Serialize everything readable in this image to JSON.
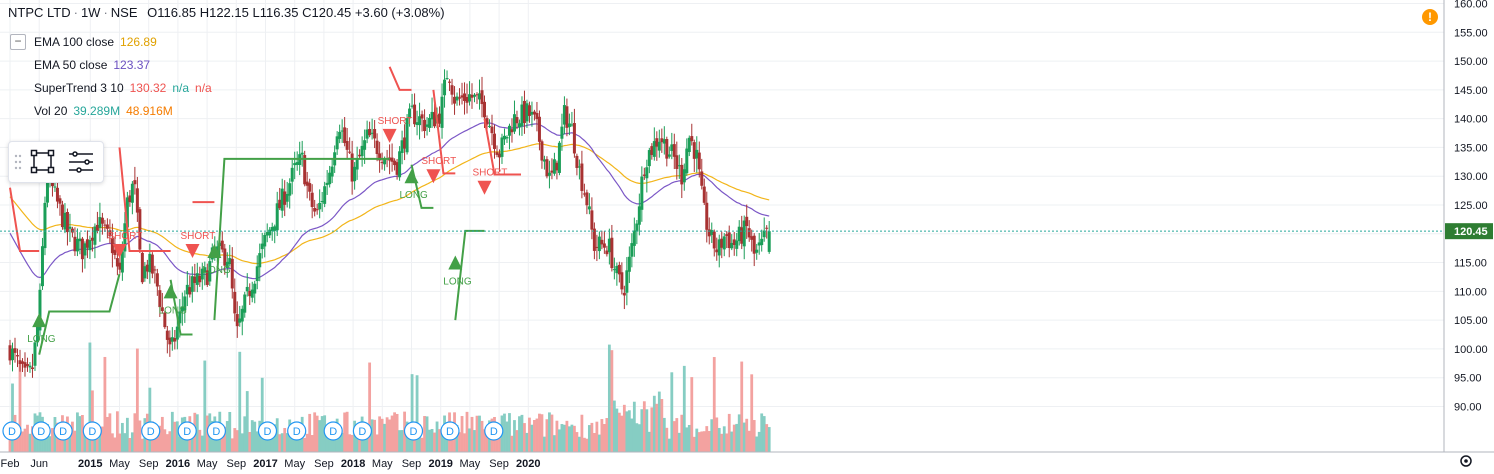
{
  "header": {
    "symbol": "NTPC LTD",
    "interval": "1W",
    "exchange": "NSE",
    "open": "O116.85",
    "high": "H122.15",
    "low": "L116.35",
    "close": "C120.45",
    "change": "+3.60 (+3.08%)"
  },
  "legend": {
    "collapse_icon": "minus-icon",
    "items": [
      {
        "label": "EMA 100 close",
        "values": [
          "126.89"
        ],
        "colors": [
          "#e0a100"
        ]
      },
      {
        "label": "EMA 50 close",
        "values": [
          "123.37"
        ],
        "colors": [
          "#6a4fc0"
        ]
      },
      {
        "label": "SuperTrend 3 10",
        "values": [
          "130.32",
          "n/a",
          "n/a"
        ],
        "colors": [
          "#ef5350",
          "#26a69a",
          "#ef5350"
        ]
      },
      {
        "label": "Vol 20",
        "values": [
          "39.289M",
          "48.916M"
        ],
        "colors": [
          "#26a69a",
          "#f57c00"
        ]
      }
    ]
  },
  "toolbar": {
    "icons": [
      "drag-handle-icon",
      "square-select-icon",
      "settings-lines-icon"
    ]
  },
  "warning_icon": "exclamation-icon",
  "colors": {
    "up": "#1b9e58",
    "down": "#a83232",
    "ema100": "#f2b51a",
    "ema50": "#7b57c6",
    "st_up": "#43a047",
    "st_down": "#ef5350",
    "vol_up": "#86cdc3",
    "vol_down": "#f3a2a0",
    "grid": "#eef0f3",
    "axis_text": "#131722",
    "last_price_bg": "#2e7d32"
  },
  "chart_data": {
    "type": "candlestick",
    "title": "NTPC LTD · 1W · NSE",
    "y_axis": {
      "range": [
        86,
        160
      ],
      "ticks": [
        90,
        95,
        100,
        105,
        110,
        115,
        120,
        125,
        130,
        135,
        140,
        145,
        150,
        155,
        160
      ]
    },
    "x_axis": {
      "labels": [
        "Feb",
        "Jun",
        "2015",
        "May",
        "Sep",
        "2016",
        "May",
        "Sep",
        "2017",
        "May",
        "Sep",
        "2018",
        "May",
        "Sep",
        "2019",
        "May",
        "Sep",
        "2020"
      ]
    },
    "last_price": "120.45",
    "signals": [
      {
        "type": "LONG",
        "time": "Jun 2014",
        "price": 105
      },
      {
        "type": "SHORT",
        "time": "May 2015",
        "price": 117
      },
      {
        "type": "LONG",
        "time": "Dec 2015",
        "price": 110
      },
      {
        "type": "SHORT",
        "time": "Mar 2016",
        "price": 117
      },
      {
        "type": "LONG",
        "time": "Jun 2016",
        "price": 117
      },
      {
        "type": "SHORT",
        "time": "Jun 2018",
        "price": 137
      },
      {
        "type": "LONG",
        "time": "Sep 2018",
        "price": 130
      },
      {
        "type": "SHORT",
        "time": "Dec 2018",
        "price": 130
      },
      {
        "type": "LONG",
        "time": "Mar 2019",
        "price": 115
      },
      {
        "type": "SHORT",
        "time": "Jul 2019",
        "price": 128
      }
    ],
    "supertrend": {
      "up_segments": [
        {
          "from": "Jun 2014",
          "to": "May 2015",
          "level": 106.5,
          "start": 99,
          "end": 113
        },
        {
          "from": "Dec 2015",
          "to": "Mar 2016",
          "level": 102.5,
          "start": 112
        },
        {
          "from": "Jun 2016",
          "to": "Jun 2018",
          "level": 133,
          "start": 105
        },
        {
          "from": "Sep 2018",
          "to": "Dec 2018",
          "level": 124.5,
          "start": 132
        },
        {
          "from": "Mar 2019",
          "to": "Jul 2019",
          "level": 120.5,
          "start": 105
        }
      ],
      "down_segments": [
        {
          "from": "Feb 2014",
          "to": "Jun 2014",
          "start": 128,
          "level": 117
        },
        {
          "from": "May 2015",
          "to": "Dec 2015",
          "start": 135,
          "level": 117
        },
        {
          "from": "Mar 2016",
          "to": "Jun 2016",
          "level": 125.5
        },
        {
          "from": "Jun 2018",
          "to": "Sep 2018",
          "start": 149,
          "level": 145
        },
        {
          "from": "Dec 2018",
          "to": "Mar 2019",
          "start": 145,
          "level": 130.5
        },
        {
          "from": "Jul 2019",
          "to": "Dec 2019",
          "start": 140,
          "level": 130.3
        }
      ]
    },
    "ema100_last": 126.89,
    "ema50_last": 123.37,
    "volume_last": "39.289M",
    "volume_ma20_last": "48.916M"
  }
}
